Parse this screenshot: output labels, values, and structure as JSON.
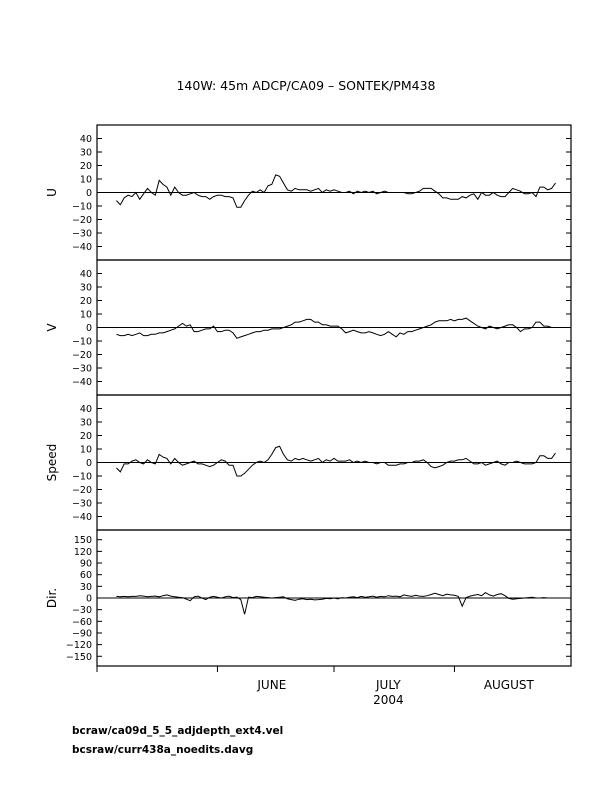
{
  "page": {
    "title": "140W: 45m   ADCP/CA09 –  SONTEK/PM438",
    "footnotes": [
      "bcraw/ca09d_5_5_adjdepth_ext4.vel",
      "bcsraw/curr438a_noedits.davg"
    ]
  },
  "chart_data": [
    {
      "type": "line",
      "ylabel": "U",
      "ylim": [
        -50,
        50
      ],
      "yticks": [
        -40,
        -30,
        -20,
        -10,
        0,
        10,
        20,
        30,
        40
      ],
      "x_start": "2004-05-06",
      "x_step_days": 1,
      "xlim": [
        "2004-05-01",
        "2004-08-31"
      ],
      "zero_line": true,
      "values": [
        -6,
        -9,
        -4,
        -2,
        -3,
        0,
        -5,
        -1,
        3,
        0,
        -2,
        9,
        6,
        4,
        -2,
        4,
        0,
        -2,
        -2,
        -1,
        0,
        -2,
        -3,
        -3,
        -5,
        -3,
        -2,
        -2,
        -3,
        -3,
        -4,
        -11,
        -11,
        -6,
        -2,
        1,
        0,
        2,
        0,
        5,
        6,
        13,
        12,
        7,
        2,
        1,
        3,
        2,
        2,
        2,
        1,
        2,
        3,
        0,
        2,
        1,
        2,
        1,
        0,
        0,
        1,
        -1,
        1,
        0,
        1,
        0,
        1,
        -1,
        0,
        1,
        0,
        0,
        0,
        0,
        0,
        -1,
        -1,
        0,
        1,
        3,
        3,
        3,
        1,
        -1,
        -4,
        -4,
        -5,
        -5,
        -5,
        -3,
        -4,
        -2,
        -1,
        -5,
        0,
        -2,
        -2,
        0,
        -2,
        -3,
        -3,
        0,
        3,
        2,
        1,
        -1,
        -1,
        0,
        -3,
        4,
        4,
        2,
        3,
        7
      ]
    },
    {
      "type": "line",
      "ylabel": "V",
      "ylim": [
        -50,
        50
      ],
      "yticks": [
        -40,
        -30,
        -20,
        -10,
        0,
        10,
        20,
        30,
        40
      ],
      "x_start": "2004-05-06",
      "x_step_days": 1,
      "xlim": [
        "2004-05-01",
        "2004-08-31"
      ],
      "zero_line": true,
      "values": [
        -5,
        -6,
        -6,
        -5,
        -6,
        -5,
        -4,
        -6,
        -6,
        -5,
        -5,
        -4,
        -4,
        -3,
        -2,
        -1,
        1,
        3,
        1,
        2,
        -3,
        -3,
        -2,
        -1,
        -1,
        1,
        -3,
        -3,
        -2,
        -2,
        -4,
        -8,
        -7,
        -6,
        -5,
        -4,
        -3,
        -3,
        -2,
        -2,
        -1,
        -1,
        -1,
        0,
        1,
        2,
        4,
        4,
        5,
        6,
        6,
        4,
        4,
        2,
        2,
        1,
        1,
        1,
        -1,
        -4,
        -3,
        -2,
        -3,
        -4,
        -4,
        -3,
        -4,
        -5,
        -6,
        -5,
        -3,
        -5,
        -7,
        -4,
        -5,
        -3,
        -3,
        -2,
        -1,
        0,
        1,
        2,
        4,
        5,
        5,
        5,
        6,
        5,
        6,
        6,
        7,
        5,
        3,
        1,
        0,
        -1,
        1,
        0,
        -1,
        0,
        1,
        2,
        2,
        0,
        -3,
        -1,
        -1,
        0,
        4,
        4,
        1,
        1,
        0
      ]
    },
    {
      "type": "line",
      "ylabel": "Speed",
      "ylim": [
        -50,
        50
      ],
      "yticks": [
        -40,
        -30,
        -20,
        -10,
        0,
        10,
        20,
        30,
        40
      ],
      "x_start": "2004-05-06",
      "x_step_days": 1,
      "xlim": [
        "2004-05-01",
        "2004-08-31"
      ],
      "zero_line": true,
      "values": [
        -4,
        -7,
        -1,
        -1,
        1,
        2,
        0,
        -1,
        2,
        0,
        -1,
        6,
        4,
        3,
        -1,
        3,
        0,
        -2,
        -1,
        0,
        1,
        -1,
        -1,
        -2,
        -3,
        -2,
        0,
        2,
        1,
        -2,
        -2,
        -10,
        -10,
        -8,
        -5,
        -2,
        0,
        1,
        0,
        2,
        6,
        11,
        12,
        6,
        2,
        1,
        3,
        2,
        3,
        2,
        1,
        2,
        3,
        0,
        2,
        1,
        3,
        1,
        1,
        1,
        2,
        0,
        1,
        0,
        1,
        0,
        0,
        -1,
        0,
        0,
        -2,
        -2,
        -2,
        -1,
        -1,
        0,
        0,
        1,
        1,
        2,
        0,
        -3,
        -4,
        -3,
        -2,
        0,
        1,
        1,
        2,
        2,
        3,
        1,
        -1,
        -1,
        0,
        -2,
        -1,
        0,
        1,
        -1,
        -2,
        0,
        0,
        1,
        0,
        -1,
        -1,
        -1,
        0,
        5,
        5,
        3,
        3,
        7
      ]
    },
    {
      "type": "line",
      "ylabel": "Dir.",
      "ylim": [
        -175,
        175
      ],
      "yticks": [
        -150,
        -120,
        -90,
        -60,
        -30,
        0,
        30,
        60,
        90,
        120,
        150
      ],
      "x_start": "2004-05-06",
      "x_step_days": 1,
      "xlim": [
        "2004-05-01",
        "2004-08-31"
      ],
      "zero_line": true,
      "values": [
        4,
        3,
        4,
        3,
        4,
        4,
        6,
        5,
        3,
        4,
        5,
        3,
        6,
        8,
        5,
        3,
        2,
        1,
        -3,
        -7,
        3,
        5,
        0,
        -4,
        2,
        4,
        2,
        0,
        3,
        5,
        1,
        2,
        -4,
        -42,
        2,
        1,
        4,
        3,
        2,
        1,
        0,
        1,
        2,
        3,
        -2,
        -4,
        -6,
        -3,
        -2,
        -4,
        -3,
        -5,
        -4,
        -3,
        -1,
        -2,
        0,
        -2,
        1,
        0,
        2,
        3,
        1,
        4,
        2,
        3,
        5,
        2,
        4,
        3,
        6,
        4,
        5,
        3,
        8,
        6,
        4,
        7,
        5,
        4,
        6,
        9,
        12,
        9,
        6,
        10,
        8,
        7,
        4,
        -21,
        1,
        5,
        7,
        9,
        6,
        14,
        8,
        5,
        9,
        11,
        6,
        -1,
        -3,
        -2,
        -1,
        0,
        1,
        2,
        0,
        0,
        1,
        0
      ]
    }
  ],
  "x_axis": {
    "month_labels": [
      "JUNE",
      "JULY",
      "AUGUST"
    ],
    "year_label": "2004"
  }
}
